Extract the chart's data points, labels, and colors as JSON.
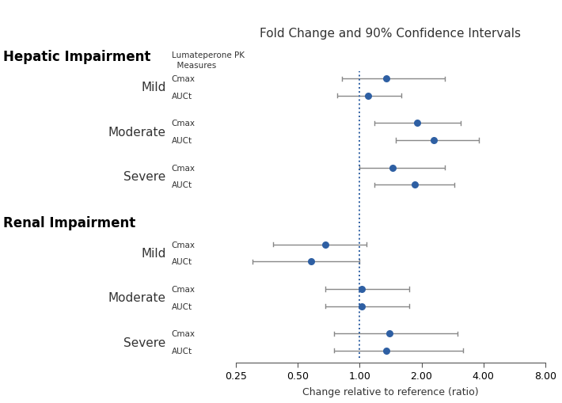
{
  "title": "Fold Change and 90% Confidence Intervals",
  "xlabel": "Change relative to reference (ratio)",
  "pk_header": "Lumateperone PK\n  Measures",
  "groups": [
    {
      "section": "Hepatic Impairment",
      "label": "Mild",
      "rows": [
        {
          "pk": "Cmax",
          "point": 1.35,
          "lo": 0.82,
          "hi": 2.6
        },
        {
          "pk": "AUCt",
          "point": 1.1,
          "lo": 0.78,
          "hi": 1.6
        }
      ]
    },
    {
      "section": null,
      "label": "Moderate",
      "rows": [
        {
          "pk": "Cmax",
          "point": 1.9,
          "lo": 1.18,
          "hi": 3.1
        },
        {
          "pk": "AUCt",
          "point": 2.3,
          "lo": 1.5,
          "hi": 3.8
        }
      ]
    },
    {
      "section": null,
      "label": "Severe",
      "rows": [
        {
          "pk": "Cmax",
          "point": 1.45,
          "lo": 1.0,
          "hi": 2.6
        },
        {
          "pk": "AUCt",
          "point": 1.85,
          "lo": 1.18,
          "hi": 2.9
        }
      ]
    },
    {
      "section": "Renal Impairment",
      "label": "Mild",
      "rows": [
        {
          "pk": "Cmax",
          "point": 0.68,
          "lo": 0.38,
          "hi": 1.08
        },
        {
          "pk": "AUCt",
          "point": 0.58,
          "lo": 0.3,
          "hi": 1.0
        }
      ]
    },
    {
      "section": null,
      "label": "Moderate",
      "rows": [
        {
          "pk": "Cmax",
          "point": 1.02,
          "lo": 0.68,
          "hi": 1.75
        },
        {
          "pk": "AUCt",
          "point": 1.02,
          "lo": 0.68,
          "hi": 1.75
        }
      ]
    },
    {
      "section": null,
      "label": "Severe",
      "rows": [
        {
          "pk": "Cmax",
          "point": 1.4,
          "lo": 0.75,
          "hi": 3.0
        },
        {
          "pk": "AUCt",
          "point": 1.35,
          "lo": 0.75,
          "hi": 3.2
        }
      ]
    }
  ],
  "dot_color": "#2E5FA3",
  "line_color": "#888888",
  "ref_line_color": "#2E5FA3",
  "xmin": 0.25,
  "xmax": 8.0,
  "xticks": [
    0.25,
    0.5,
    1.0,
    2.0,
    4.0,
    8.0
  ],
  "xtick_labels": [
    "0.25",
    "0.50",
    "1.00",
    "2.00",
    "4.00",
    "8.00"
  ]
}
